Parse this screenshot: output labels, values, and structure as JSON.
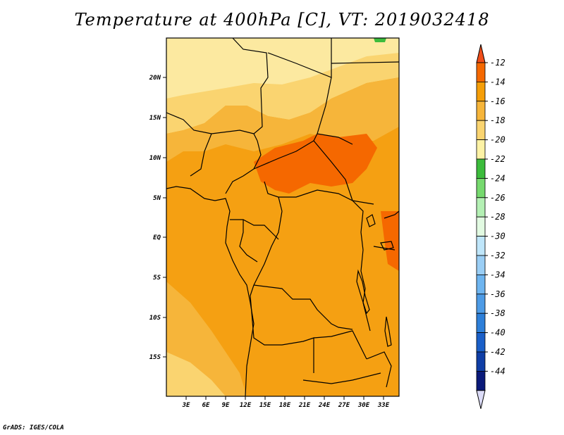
{
  "title": "Temperature at 400hPa [C], VT: 2019032418",
  "footer": "GrADS: IGES/COLA",
  "map": {
    "lat_ticks": [
      "20N",
      "15N",
      "10N",
      "5N",
      "EQ",
      "5S",
      "10S",
      "15S"
    ],
    "lon_ticks": [
      "3E",
      "6E",
      "9E",
      "12E",
      "15E",
      "18E",
      "21E",
      "24E",
      "27E",
      "30E",
      "33E"
    ]
  },
  "colorbar": {
    "labels": [
      "-12",
      "-14",
      "-16",
      "-18",
      "-20",
      "-22",
      "-24",
      "-26",
      "-28",
      "-30",
      "-32",
      "-34",
      "-36",
      "-38",
      "-40",
      "-42",
      "-44"
    ],
    "colors": [
      "#f04e1a",
      "#f56800",
      "#f59e08",
      "#f6b53a",
      "#fad470",
      "#fdf2a5",
      "#3cbc3c",
      "#76d96e",
      "#b4f0b4",
      "#e2fae2",
      "#bfe6fa",
      "#9acef5",
      "#6eb5f0",
      "#4d9be6",
      "#2d7fd9",
      "#1a5fc8",
      "#0f3ea6",
      "#0a1a7a",
      "#dcdcf8"
    ]
  },
  "colors": {
    "ocean": "#f6b53a",
    "base": "#f5a012",
    "north": "#fad470",
    "far_north": "#fce9a0",
    "warm_core": "#f56800"
  }
}
